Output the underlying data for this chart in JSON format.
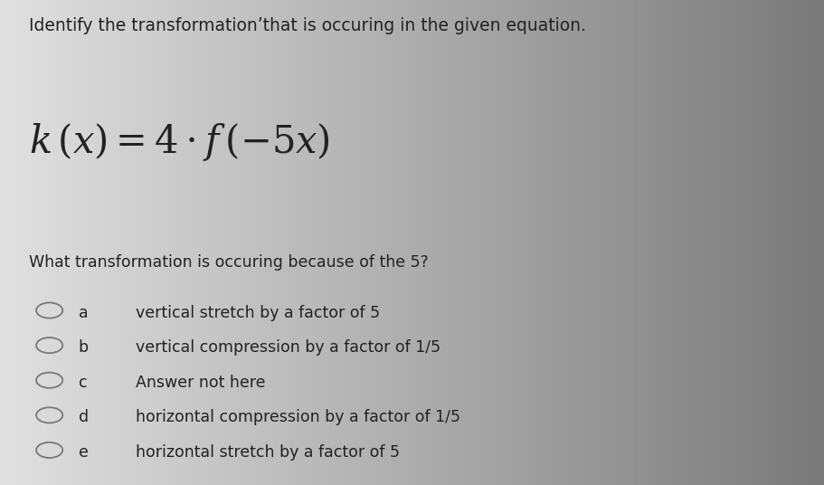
{
  "background_color": "#cccccc",
  "title_line1": "Identify the transformationʼthat is occuring in the given equation.",
  "title_fontsize": 13.5,
  "equation_fontsize": 30,
  "question": "What transformation is occuring because of the 5?",
  "question_fontsize": 12.5,
  "choices": [
    {
      "label": "a",
      "text": "vertical stretch by a factor of 5"
    },
    {
      "label": "b",
      "text": "vertical compression by a factor of 1/5"
    },
    {
      "label": "c",
      "text": "Answer not here"
    },
    {
      "label": "d",
      "text": "horizontal compression by a factor of 1/5"
    },
    {
      "label": "e",
      "text": "horizontal stretch by a factor of 5"
    }
  ],
  "choice_fontsize": 12.5,
  "text_color": "#222222",
  "circle_color": "#777777"
}
